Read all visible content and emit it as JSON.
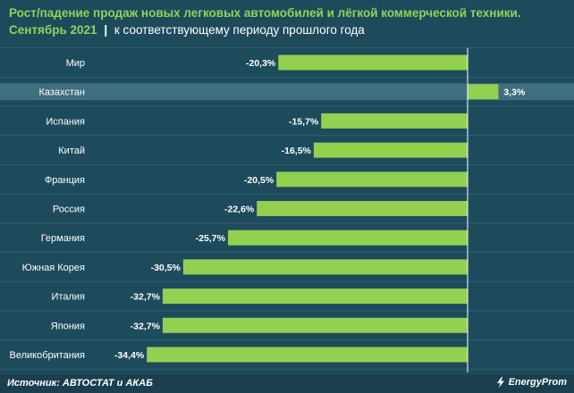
{
  "header": {
    "title": "Рост/падение продаж новых легковых автомобилей и лёгкой коммерческой техники.",
    "subtitle_bold": "Сентябрь 2021",
    "subtitle_sep": "|",
    "subtitle_rest": "к соответствующему периоду прошлого года"
  },
  "footer": {
    "source": "Источник: АВТОСТАТ и АКАБ",
    "logo_text": "EnergyProm"
  },
  "colors": {
    "background": "#1d4b5c",
    "bar": "#92d050",
    "highlight_row": "#3f6f7e",
    "title_accent": "#8fd45a"
  },
  "chart_data": {
    "type": "bar",
    "orientation": "horizontal",
    "categories": [
      "Мир",
      "Казахстан",
      "Испания",
      "Китай",
      "Франция",
      "Россия",
      "Германия",
      "Южная Корея",
      "Италия",
      "Япония",
      "Великобритания"
    ],
    "values": [
      -20.3,
      3.3,
      -15.7,
      -16.5,
      -20.5,
      -22.6,
      -25.7,
      -30.5,
      -32.7,
      -32.7,
      -34.4
    ],
    "labels": [
      "-20,3%",
      "3,3%",
      "-15,7%",
      "-16,5%",
      "-20,5%",
      "-22,6%",
      "-25,7%",
      "-30,5%",
      "-32,7%",
      "-32,7%",
      "-34,4%"
    ],
    "highlighted": "Казахстан",
    "xlim": [
      -35,
      5
    ],
    "grid": true
  }
}
